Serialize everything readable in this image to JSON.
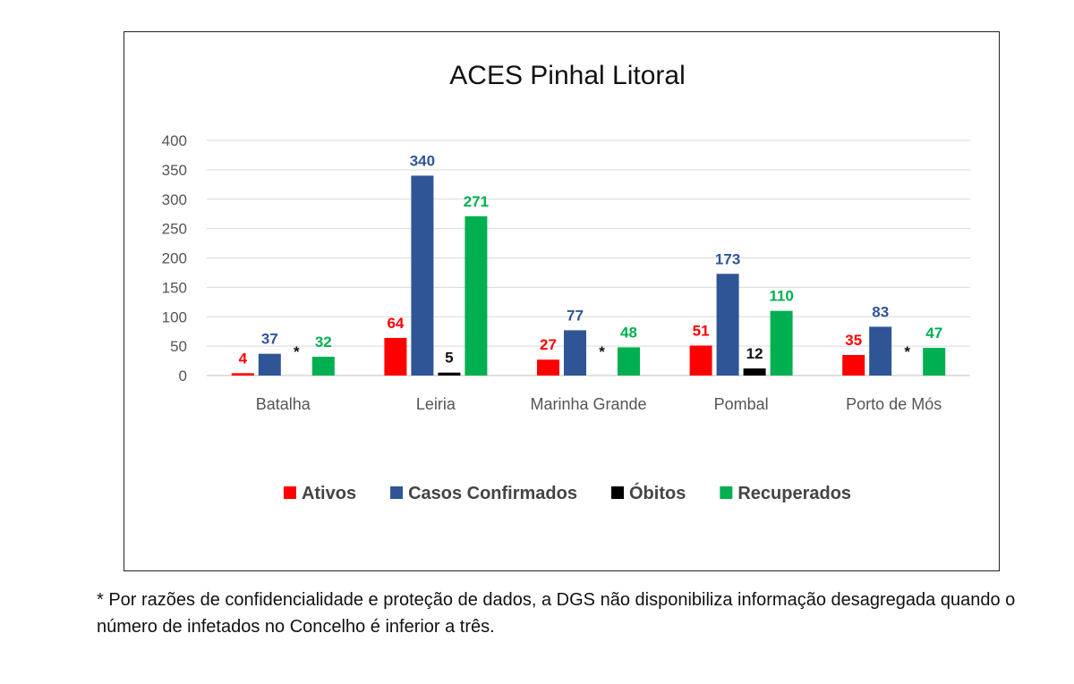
{
  "chart_data": {
    "type": "bar",
    "title": "ACES Pinhal Litoral",
    "xlabel": "",
    "ylabel": "",
    "ylim": [
      0,
      400
    ],
    "yticks": [
      0,
      50,
      100,
      150,
      200,
      250,
      300,
      350,
      400
    ],
    "grid": true,
    "legend_position": "bottom",
    "categories": [
      "Batalha",
      "Leiria",
      "Marinha Grande",
      "Pombal",
      "Porto de Mós"
    ],
    "series": [
      {
        "name": "Ativos",
        "color": "#ff0000",
        "values": [
          4,
          64,
          27,
          51,
          35
        ],
        "labels": [
          "4",
          "64",
          "27",
          "51",
          "35"
        ]
      },
      {
        "name": "Casos Confirmados",
        "color": "#2f5597",
        "values": [
          37,
          340,
          77,
          173,
          83
        ],
        "labels": [
          "37",
          "340",
          "77",
          "173",
          "83"
        ]
      },
      {
        "name": "Óbitos",
        "color": "#000000",
        "values": [
          null,
          5,
          null,
          12,
          null
        ],
        "labels": [
          "*",
          "5",
          "*",
          "12",
          "*"
        ]
      },
      {
        "name": "Recuperados",
        "color": "#00b050",
        "values": [
          32,
          271,
          48,
          110,
          47
        ],
        "labels": [
          "32",
          "271",
          "48",
          "110",
          "47"
        ]
      }
    ]
  },
  "footnote": "* Por razões de confidencialidade e proteção de dados, a DGS não disponibiliza informação desagregada quando o número de infetados no Concelho é inferior a três."
}
